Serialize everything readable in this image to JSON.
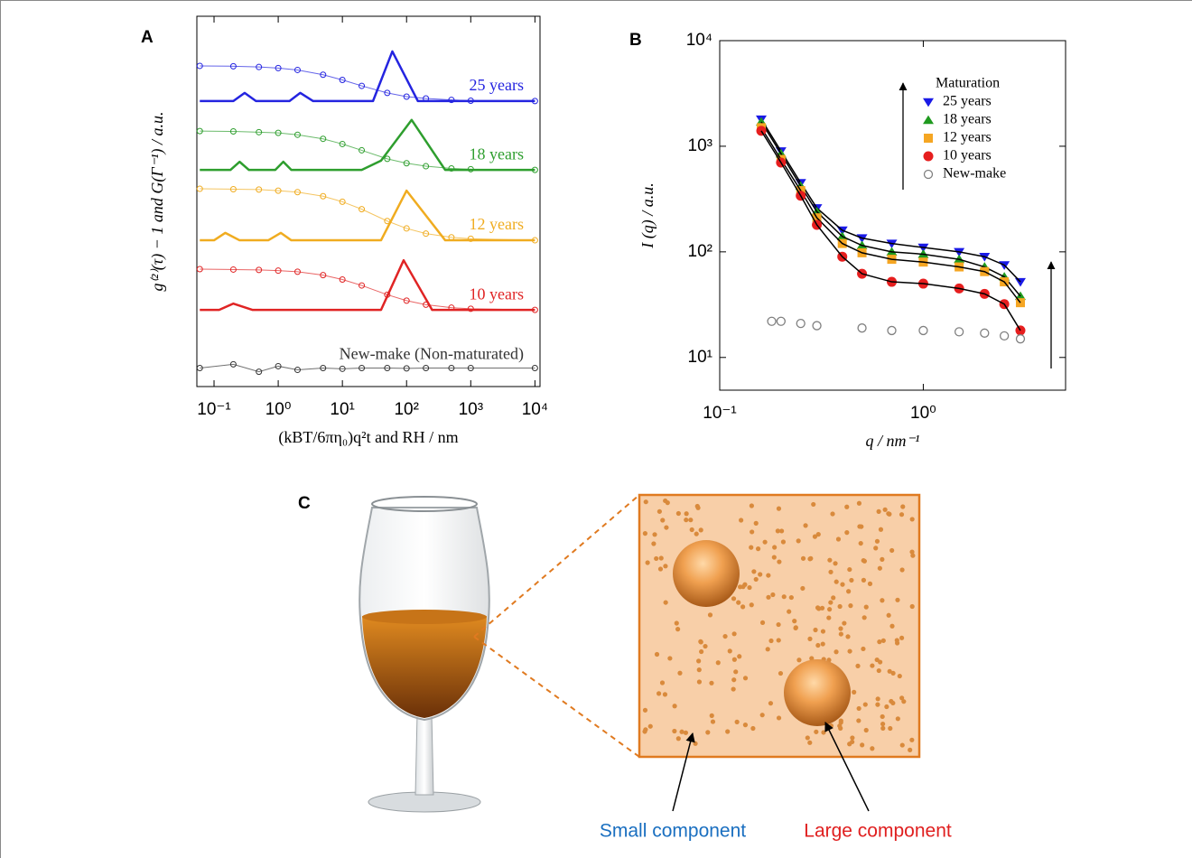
{
  "chart_data": [
    {
      "type": "line",
      "panel_label": "A",
      "xlabel": "(kBT/6πη₀)q²t   and   RH  /  nm",
      "ylabel": "g⁽²⁾(τ) − 1     and     G(Γ⁻¹)  / a.u.",
      "xscale": "log",
      "xlim": [
        0.054,
        12000
      ],
      "ylim": [
        0,
        10
      ],
      "xticks": [
        {
          "value": 0.1,
          "label": "10⁻¹"
        },
        {
          "value": 1,
          "label": "10⁰"
        },
        {
          "value": 10,
          "label": "10¹"
        },
        {
          "value": 100,
          "label": "10²"
        },
        {
          "value": 1000,
          "label": "10³"
        },
        {
          "value": 10000,
          "label": "10⁴"
        }
      ],
      "series": [
        {
          "name": "25 years",
          "color": "#2424e0",
          "correlation": {
            "x": [
              0.06,
              0.2,
              0.5,
              1,
              2,
              5,
              10,
              20,
              50,
              100,
              200,
              500,
              1000,
              10000
            ],
            "values": [
              8.66,
              8.65,
              8.63,
              8.6,
              8.55,
              8.42,
              8.28,
              8.12,
              7.93,
              7.83,
              7.78,
              7.74,
              7.72,
              7.71
            ]
          },
          "distribution": {
            "x": [
              0.06,
              0.2,
              0.3,
              0.45,
              1.5,
              2.2,
              3.5,
              30,
              60,
              150,
              10000
            ],
            "values": [
              7.71,
              7.71,
              7.93,
              7.71,
              7.71,
              7.93,
              7.71,
              7.71,
              9.05,
              7.71,
              7.71
            ]
          }
        },
        {
          "name": "18 years",
          "color": "#2e9e2e",
          "correlation": {
            "x": [
              0.06,
              0.2,
              0.5,
              1,
              2,
              5,
              10,
              20,
              50,
              100,
              200,
              500,
              1000,
              10000
            ],
            "values": [
              6.9,
              6.89,
              6.87,
              6.85,
              6.8,
              6.69,
              6.55,
              6.38,
              6.15,
              6.03,
              5.95,
              5.89,
              5.87,
              5.85
            ]
          },
          "distribution": {
            "x": [
              0.06,
              0.18,
              0.25,
              0.35,
              0.9,
              1.2,
              1.6,
              20,
              40,
              120,
              400,
              10000
            ],
            "values": [
              5.85,
              5.85,
              6.07,
              5.85,
              5.85,
              6.07,
              5.85,
              5.85,
              6.1,
              7.2,
              5.85,
              5.85
            ]
          }
        },
        {
          "name": "12 years",
          "color": "#f0ac20",
          "correlation": {
            "x": [
              0.06,
              0.2,
              0.5,
              1,
              2,
              5,
              10,
              20,
              50,
              100,
              200,
              500,
              1000,
              10000
            ],
            "values": [
              5.34,
              5.33,
              5.32,
              5.29,
              5.25,
              5.14,
              4.99,
              4.79,
              4.47,
              4.27,
              4.13,
              4.03,
              3.99,
              3.95
            ]
          },
          "distribution": {
            "x": [
              0.06,
              0.1,
              0.15,
              0.25,
              0.7,
              1.1,
              1.6,
              40,
              100,
              400,
              10000
            ],
            "values": [
              3.95,
              3.95,
              4.15,
              3.95,
              3.95,
              4.15,
              3.95,
              3.95,
              5.29,
              3.95,
              3.95
            ]
          }
        },
        {
          "name": "10 years",
          "color": "#e02424",
          "correlation": {
            "x": [
              0.06,
              0.2,
              0.5,
              1,
              2,
              5,
              10,
              20,
              50,
              100,
              200,
              500,
              1000,
              10000
            ],
            "values": [
              3.17,
              3.16,
              3.15,
              3.13,
              3.1,
              3.01,
              2.89,
              2.73,
              2.48,
              2.32,
              2.21,
              2.13,
              2.1,
              2.07
            ]
          },
          "distribution": {
            "x": [
              0.06,
              0.12,
              0.2,
              0.4,
              40,
              90,
              250,
              10000
            ],
            "values": [
              2.07,
              2.07,
              2.24,
              2.07,
              2.07,
              3.41,
              2.07,
              2.07
            ]
          }
        },
        {
          "name": "New-make (Non-maturated)",
          "color": "#333333",
          "correlation": {
            "x": [
              0.06,
              0.2,
              0.5,
              1,
              2,
              5,
              10,
              20,
              50,
              100,
              200,
              500,
              1000,
              10000
            ],
            "values": [
              0.5,
              0.6,
              0.4,
              0.55,
              0.45,
              0.5,
              0.48,
              0.5,
              0.5,
              0.49,
              0.5,
              0.5,
              0.5,
              0.5
            ]
          }
        }
      ]
    },
    {
      "type": "scatter",
      "panel_label": "B",
      "xlabel": "q / nm⁻¹",
      "ylabel": "I (q) / a.u.",
      "xscale": "log",
      "yscale": "log",
      "xlim": [
        0.1,
        5
      ],
      "ylim": [
        4.9,
        10000
      ],
      "xticks": [
        {
          "value": 0.1,
          "label": "10⁻¹"
        },
        {
          "value": 1,
          "label": "10⁰"
        }
      ],
      "yticks": [
        {
          "value": 10,
          "label": "10¹"
        },
        {
          "value": 100,
          "label": "10²"
        },
        {
          "value": 1000,
          "label": "10³"
        },
        {
          "value": 10000,
          "label": "10⁴"
        }
      ],
      "legend_title": "Maturation",
      "legend": "upper right",
      "series": [
        {
          "name": "25 years",
          "color": "#1a1ae6",
          "marker": "triangle-down",
          "fit": true,
          "x": [
            0.16,
            0.2,
            0.25,
            0.3,
            0.4,
            0.5,
            0.7,
            1,
            1.5,
            2,
            2.5,
            3
          ],
          "values": [
            1800,
            900,
            450,
            260,
            160,
            135,
            120,
            110,
            100,
            90,
            75,
            52
          ]
        },
        {
          "name": "18 years",
          "color": "#1f9a1f",
          "marker": "triangle-up",
          "fit": true,
          "x": [
            0.16,
            0.2,
            0.25,
            0.3,
            0.4,
            0.5,
            0.7,
            1,
            1.5,
            2,
            2.5,
            3
          ],
          "values": [
            1700,
            850,
            420,
            240,
            140,
            115,
            100,
            95,
            85,
            72,
            58,
            38
          ]
        },
        {
          "name": "12 years",
          "color": "#f5a623",
          "marker": "square",
          "fit": true,
          "x": [
            0.16,
            0.2,
            0.25,
            0.3,
            0.4,
            0.5,
            0.7,
            1,
            1.5,
            2,
            2.5,
            3
          ],
          "values": [
            1500,
            750,
            380,
            210,
            120,
            98,
            85,
            80,
            72,
            65,
            52,
            33
          ]
        },
        {
          "name": "10 years",
          "color": "#e61e1e",
          "marker": "circle",
          "fit": true,
          "x": [
            0.16,
            0.2,
            0.25,
            0.3,
            0.4,
            0.5,
            0.7,
            1,
            1.5,
            2,
            2.5,
            3
          ],
          "values": [
            1400,
            700,
            340,
            180,
            90,
            62,
            52,
            50,
            45,
            40,
            32,
            18
          ]
        },
        {
          "name": "New-make",
          "color": "#808080",
          "marker": "open-circle",
          "fit": false,
          "x": [
            0.18,
            0.2,
            0.25,
            0.3,
            0.5,
            0.7,
            1,
            1.5,
            2,
            2.5,
            3
          ],
          "values": [
            22,
            22,
            21,
            20,
            19,
            18,
            18,
            17.5,
            17,
            16,
            15
          ]
        }
      ]
    }
  ],
  "diagram": {
    "label": "C",
    "annotations": [
      {
        "text": "Small component",
        "color": "#1a6fc0"
      },
      {
        "text": "Large component",
        "color": "#e02020"
      }
    ]
  }
}
